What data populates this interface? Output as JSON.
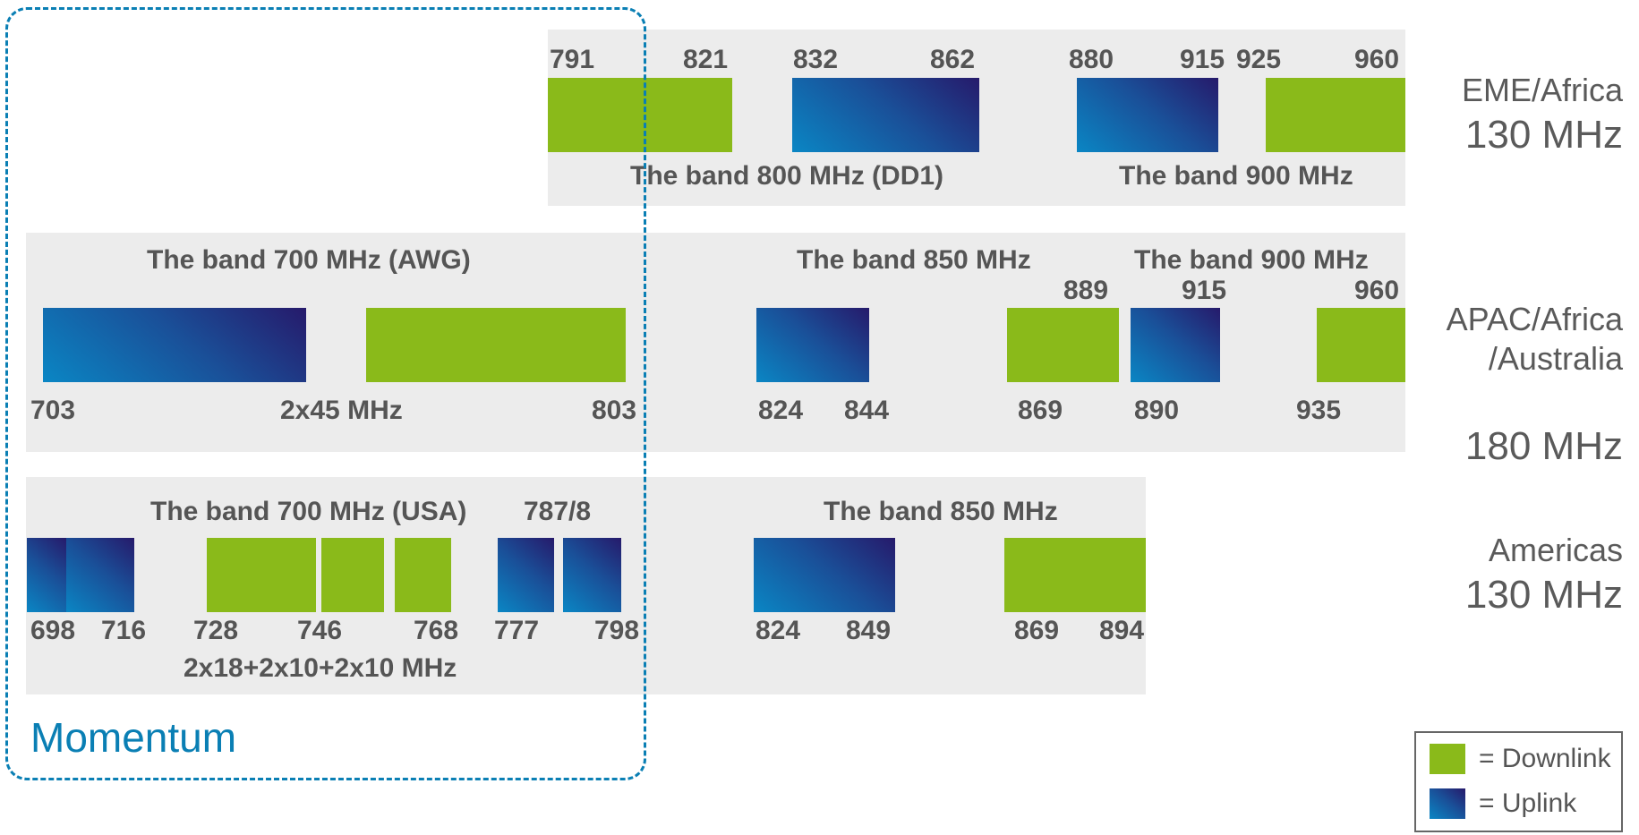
{
  "regions": {
    "emea": {
      "name": "EME/Africa",
      "total": "130 MHz",
      "bands": {
        "b800": "The band 800 MHz (DD1)",
        "b900": "The band 900 MHz"
      },
      "freqs": [
        "791",
        "821",
        "832",
        "862",
        "880",
        "915",
        "925",
        "960"
      ]
    },
    "apac": {
      "name_line1": "APAC/Africa",
      "name_line2": "/Australia",
      "total": "180 MHz",
      "bands": {
        "b700": "The band 700 MHz (AWG)",
        "b850": "The band 850 MHz",
        "b900": "The band 900 MHz",
        "bw": "2x45 MHz"
      },
      "freqs": [
        "703",
        "803",
        "824",
        "844",
        "869",
        "889",
        "890",
        "915",
        "935",
        "960"
      ]
    },
    "americas": {
      "name": "Americas",
      "total": "130 MHz",
      "bands": {
        "b700": "The band 700 MHz (USA)",
        "b787": "787/8",
        "b850": "The band 850 MHz",
        "bw": "2x18+2x10+2x10 MHz"
      },
      "freqs": [
        "698",
        "716",
        "728",
        "746",
        "768",
        "777",
        "798",
        "824",
        "849",
        "869",
        "894"
      ]
    }
  },
  "highlight": {
    "label": "Momentum",
    "color": "#0a7fb4"
  },
  "legend": {
    "downlink": "= Downlink",
    "uplink": "= Uplink"
  },
  "colors": {
    "downlink": "#8aba1a",
    "uplink_start": "#0a86c4",
    "uplink_end": "#261a6b",
    "panel": "#ececec"
  }
}
